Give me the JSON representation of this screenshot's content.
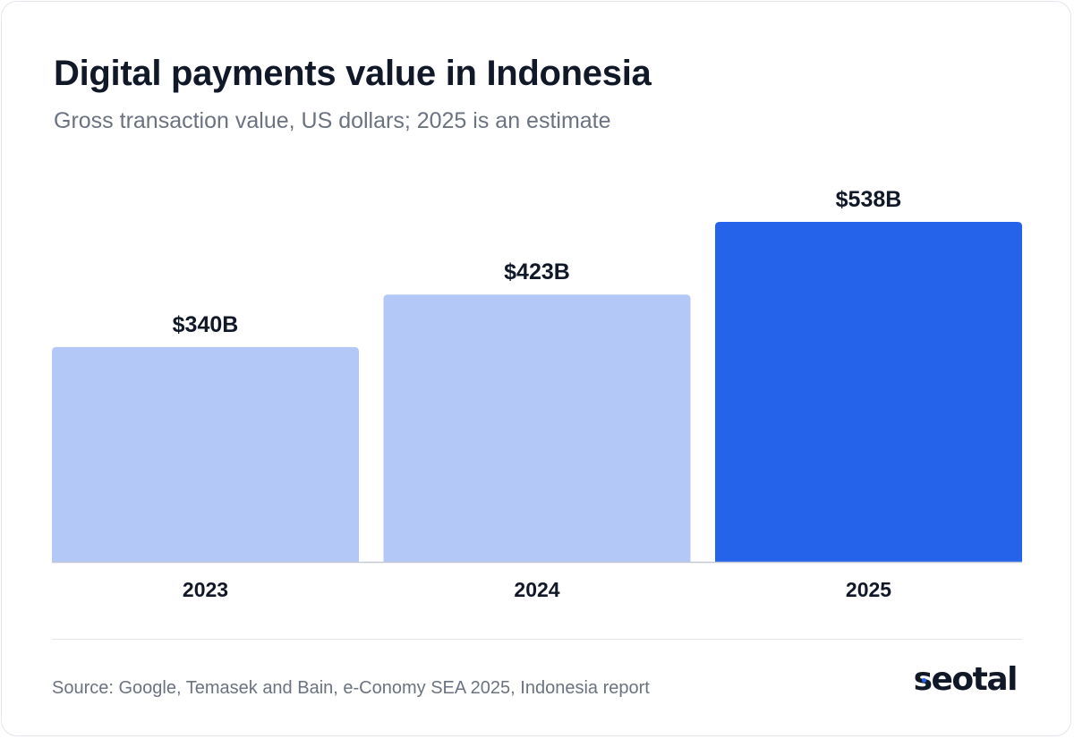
{
  "header": {
    "title": "Digital payments value in Indonesia",
    "subtitle": "Gross transaction value, US dollars; 2025 is an estimate"
  },
  "footer": {
    "source": "Source: Google, Temasek and Bain, e-Conomy SEA 2025, Indonesia report",
    "logo_text": "seotal"
  },
  "colors": {
    "actual_bar": "#b3c8f7",
    "estimate_bar": "#2563eb",
    "text_dark": "#111827",
    "text_muted": "#6b7280",
    "baseline": "#c4c9d2"
  },
  "chart_data": {
    "type": "bar",
    "title": "Digital payments value in Indonesia",
    "subtitle": "Gross transaction value, US dollars; 2025 is an estimate",
    "xlabel": "",
    "ylabel": "",
    "categories": [
      "2023",
      "2024",
      "2025"
    ],
    "values": [
      340,
      423,
      538
    ],
    "data_labels": [
      "$340B",
      "$423B",
      "$538B"
    ],
    "estimate": [
      false,
      false,
      true
    ],
    "unit": "US$ billions",
    "grid": false,
    "legend": "none"
  }
}
